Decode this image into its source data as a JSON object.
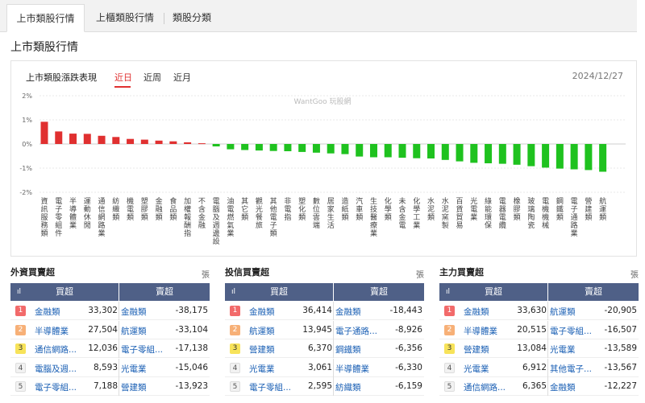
{
  "tabs": [
    "上市類股行情",
    "上櫃類股行情",
    "類股分類"
  ],
  "section_title": "上市類股行情",
  "chart_header": {
    "title": "上市類股漲跌表現",
    "periods": [
      "近日",
      "近周",
      "近月"
    ],
    "date": "2024/12/27"
  },
  "colors": {
    "up": "#e03030",
    "down": "#1fc21f",
    "header": "#4f6087",
    "link": "#1a5fb4"
  },
  "chart_data": {
    "type": "bar",
    "watermark": "WantGoo 玩股網",
    "ylim": [
      -2,
      2
    ],
    "ytick_labels": [
      "2%",
      "1%",
      "0%",
      "-1%",
      "-2%"
    ],
    "grid": true,
    "categories": [
      "資訊服務類",
      "電子零組件",
      "半導體業",
      "運動休閒",
      "通信網路業",
      "紡織類",
      "機電類",
      "塑膠類",
      "金融類",
      "食品類",
      "加權報酬指",
      "不含金融",
      "電腦及週邊設",
      "油電燃氣業",
      "其它類",
      "觀光餐旅",
      "其他電子類",
      "非電指",
      "塑化類",
      "數位雲端",
      "居家生活",
      "造紙類",
      "汽車類",
      "生技醫療業",
      "化學類",
      "未含金電",
      "化學工業",
      "水泥類",
      "水泥窯製",
      "百貨貿易",
      "光電業",
      "綠能環保",
      "電器電纜",
      "橡膠類",
      "玻璃陶瓷",
      "電機機械",
      "鋼鐵類",
      "電子通路業",
      "營建類",
      "航運類"
    ],
    "values": [
      0.92,
      0.52,
      0.43,
      0.42,
      0.34,
      0.29,
      0.21,
      0.18,
      0.14,
      0.11,
      0.07,
      0.03,
      -0.1,
      -0.22,
      -0.25,
      -0.27,
      -0.29,
      -0.3,
      -0.33,
      -0.36,
      -0.39,
      -0.42,
      -0.52,
      -0.55,
      -0.55,
      -0.57,
      -0.59,
      -0.6,
      -0.66,
      -0.72,
      -0.78,
      -0.8,
      -0.82,
      -0.86,
      -0.92,
      -0.98,
      -1.02,
      -1.05,
      -1.08,
      -1.15
    ]
  },
  "tables": [
    {
      "title": "外資買賣超",
      "unit": "張",
      "buy_label": "買超",
      "sell_label": "賣超",
      "icon": "ıl",
      "rows": [
        {
          "rank": "1",
          "buy_name": "金融類",
          "buy_value": "33,302",
          "sell_name": "金融類",
          "sell_value": "-38,175"
        },
        {
          "rank": "2",
          "buy_name": "半導體業",
          "buy_value": "27,504",
          "sell_name": "航運類",
          "sell_value": "-33,104"
        },
        {
          "rank": "3",
          "buy_name": "通信網路...",
          "buy_value": "12,036",
          "sell_name": "電子零組...",
          "sell_value": "-17,138"
        },
        {
          "rank": "4",
          "buy_name": "電腦及週...",
          "buy_value": "8,593",
          "sell_name": "光電業",
          "sell_value": "-15,046"
        },
        {
          "rank": "5",
          "buy_name": "電子零組...",
          "buy_value": "7,188",
          "sell_name": "營建類",
          "sell_value": "-13,923"
        }
      ]
    },
    {
      "title": "投信買賣超",
      "unit": "張",
      "buy_label": "買超",
      "sell_label": "賣超",
      "icon": "ıl",
      "rows": [
        {
          "rank": "1",
          "buy_name": "金融類",
          "buy_value": "36,414",
          "sell_name": "金融類",
          "sell_value": "-18,443"
        },
        {
          "rank": "2",
          "buy_name": "航運類",
          "buy_value": "13,945",
          "sell_name": "電子通路...",
          "sell_value": "-8,926"
        },
        {
          "rank": "3",
          "buy_name": "營建類",
          "buy_value": "6,370",
          "sell_name": "鋼鐵類",
          "sell_value": "-6,356"
        },
        {
          "rank": "4",
          "buy_name": "光電業",
          "buy_value": "3,061",
          "sell_name": "半導體業",
          "sell_value": "-6,330"
        },
        {
          "rank": "5",
          "buy_name": "電子零組...",
          "buy_value": "2,595",
          "sell_name": "紡織類",
          "sell_value": "-6,159"
        }
      ]
    },
    {
      "title": "主力買賣超",
      "unit": "張",
      "buy_label": "買超",
      "sell_label": "賣超",
      "icon": "ıl",
      "rows": [
        {
          "rank": "1",
          "buy_name": "金融類",
          "buy_value": "33,630",
          "sell_name": "航運類",
          "sell_value": "-20,905"
        },
        {
          "rank": "2",
          "buy_name": "半導體業",
          "buy_value": "20,515",
          "sell_name": "電子零組...",
          "sell_value": "-16,507"
        },
        {
          "rank": "3",
          "buy_name": "營建類",
          "buy_value": "13,084",
          "sell_name": "光電業",
          "sell_value": "-13,589"
        },
        {
          "rank": "4",
          "buy_name": "光電業",
          "buy_value": "6,912",
          "sell_name": "其他電子...",
          "sell_value": "-13,567"
        },
        {
          "rank": "5",
          "buy_name": "通信網路...",
          "buy_value": "6,365",
          "sell_name": "金融類",
          "sell_value": "-12,227"
        }
      ]
    }
  ]
}
